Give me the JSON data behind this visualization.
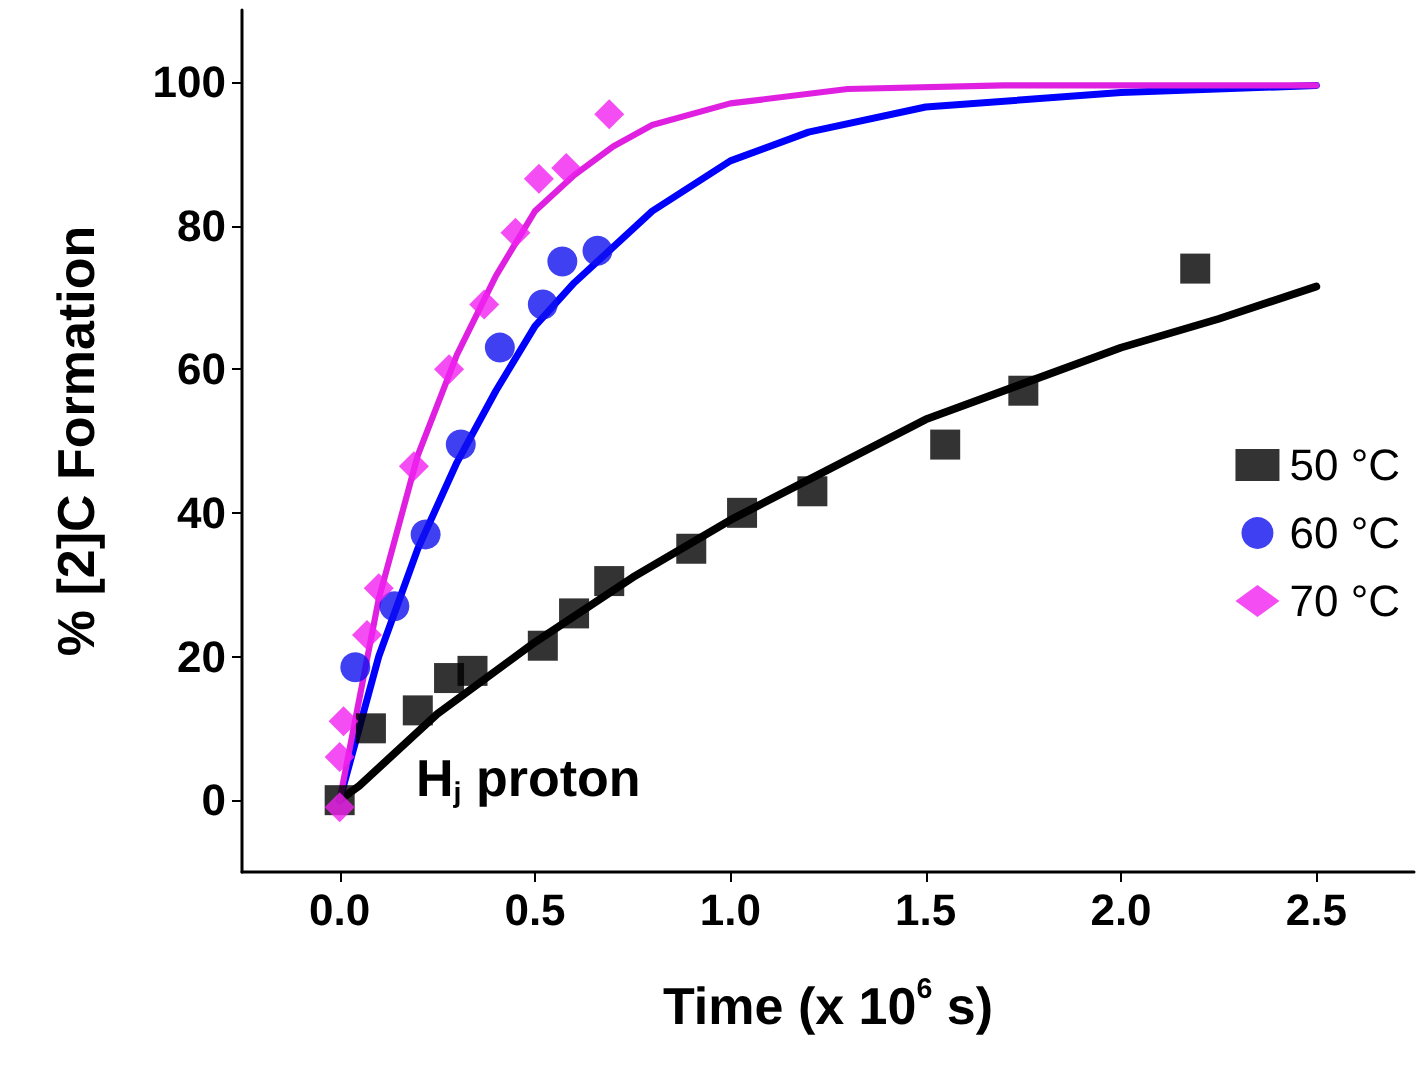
{
  "chart_data": {
    "type": "scatter",
    "xlabel": "Time (x 10$^{6}$ s)",
    "ylabel": "% [2]C Formation",
    "annotations": [
      "H$_{j}$ proton"
    ],
    "xlim": [
      -0.25,
      2.75
    ],
    "ylim": [
      -10,
      110
    ],
    "xticks": [
      {
        "value": 0,
        "label": "0.0"
      },
      {
        "value": 0.5,
        "label": "0.5"
      },
      {
        "value": 1,
        "label": "1.0"
      },
      {
        "value": 1.5,
        "label": "1.5"
      },
      {
        "value": 2,
        "label": "2.0"
      },
      {
        "value": 2.5,
        "label": "2.5"
      }
    ],
    "yticks": [
      0,
      20,
      40,
      60,
      80,
      100
    ],
    "grid": false,
    "legend": "right",
    "series": [
      {
        "type": "line",
        "marker": "none",
        "color": "#000000",
        "x": [
          0,
          0.05,
          0.25,
          0.5,
          0.75,
          1,
          1.25,
          1.5,
          1.75,
          2,
          2.25,
          2.5
        ],
        "values": [
          0,
          2,
          12,
          22,
          31,
          39,
          46,
          53,
          58,
          63,
          67,
          71.5
        ]
      },
      {
        "type": "line",
        "marker": "none",
        "color": "#0000ff",
        "x": [
          0,
          0.1,
          0.2,
          0.3,
          0.4,
          0.5,
          0.6,
          0.7,
          0.8,
          1,
          1.2,
          1.5,
          2,
          2.5
        ],
        "values": [
          0,
          20,
          35,
          47,
          57,
          66,
          72,
          77,
          82,
          89,
          93,
          96.5,
          98.5,
          99.5
        ]
      },
      {
        "type": "line",
        "marker": "none",
        "color": "#e020e0",
        "x": [
          0,
          0.1,
          0.2,
          0.3,
          0.4,
          0.5,
          0.6,
          0.7,
          0.8,
          1,
          1.3,
          1.7,
          2.5
        ],
        "values": [
          0,
          28,
          48,
          62,
          73,
          82,
          87,
          91,
          94,
          97,
          99,
          99.5,
          99.5
        ]
      },
      {
        "name": "50 °C",
        "marker": "square",
        "color": "#000000",
        "x": [
          0,
          0.08,
          0.2,
          0.28,
          0.34,
          0.52,
          0.6,
          0.69,
          0.9,
          1.03,
          1.21,
          1.55,
          1.75,
          2.19
        ],
        "values": [
          0,
          10,
          12.5,
          17,
          18,
          21.5,
          26,
          30.5,
          35,
          40,
          43,
          49.5,
          57,
          74
        ]
      },
      {
        "name": "60 °C",
        "marker": "circle",
        "color": "#1010f0",
        "x": [
          0.04,
          0.14,
          0.22,
          0.31,
          0.41,
          0.52,
          0.57,
          0.66
        ],
        "values": [
          18.5,
          27,
          37,
          49.5,
          63,
          69,
          75,
          76.5
        ]
      },
      {
        "name": "70 °C",
        "marker": "diamond",
        "color": "#f020f0",
        "x": [
          0,
          0,
          0.01,
          0.07,
          0.1,
          0.19,
          0.28,
          0.37,
          0.45,
          0.51,
          0.58,
          0.69
        ],
        "values": [
          -1,
          6,
          11,
          23,
          29.5,
          46.5,
          60,
          69,
          79,
          86.5,
          88,
          95.5
        ]
      }
    ]
  }
}
